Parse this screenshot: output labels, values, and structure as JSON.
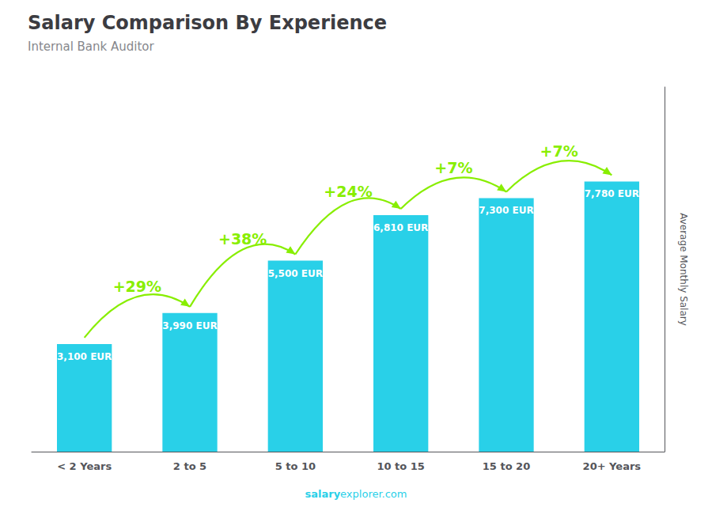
{
  "chart_data": {
    "type": "bar",
    "title": "Salary Comparison By Experience",
    "subtitle": "Internal Bank Auditor",
    "ylabel": "Average Monthly Salary",
    "watermark": [
      "salary",
      "explorer.com"
    ],
    "categories": [
      "< 2 Years",
      "2 to 5",
      "5 to 10",
      "10 to 15",
      "15 to 20",
      "20+ Years"
    ],
    "values": [
      3100,
      3990,
      5500,
      6810,
      7300,
      7780
    ],
    "value_labels": [
      "3,100 EUR",
      "3,990 EUR",
      "5,500 EUR",
      "6,810 EUR",
      "7,300 EUR",
      "7,780 EUR"
    ],
    "data_labels": true,
    "color": "#29d0e8",
    "annotations": [
      {
        "text": "+29%",
        "color": "#88ee00"
      },
      {
        "text": "+38%",
        "color": "#88ee00"
      },
      {
        "text": "+24%",
        "color": "#88ee00"
      },
      {
        "text": "+7%",
        "color": "#88ee00"
      },
      {
        "text": "+7%",
        "color": "#88ee00"
      }
    ],
    "ylim": [
      0,
      10500
    ],
    "tick_labels": "x",
    "grid": false
  }
}
